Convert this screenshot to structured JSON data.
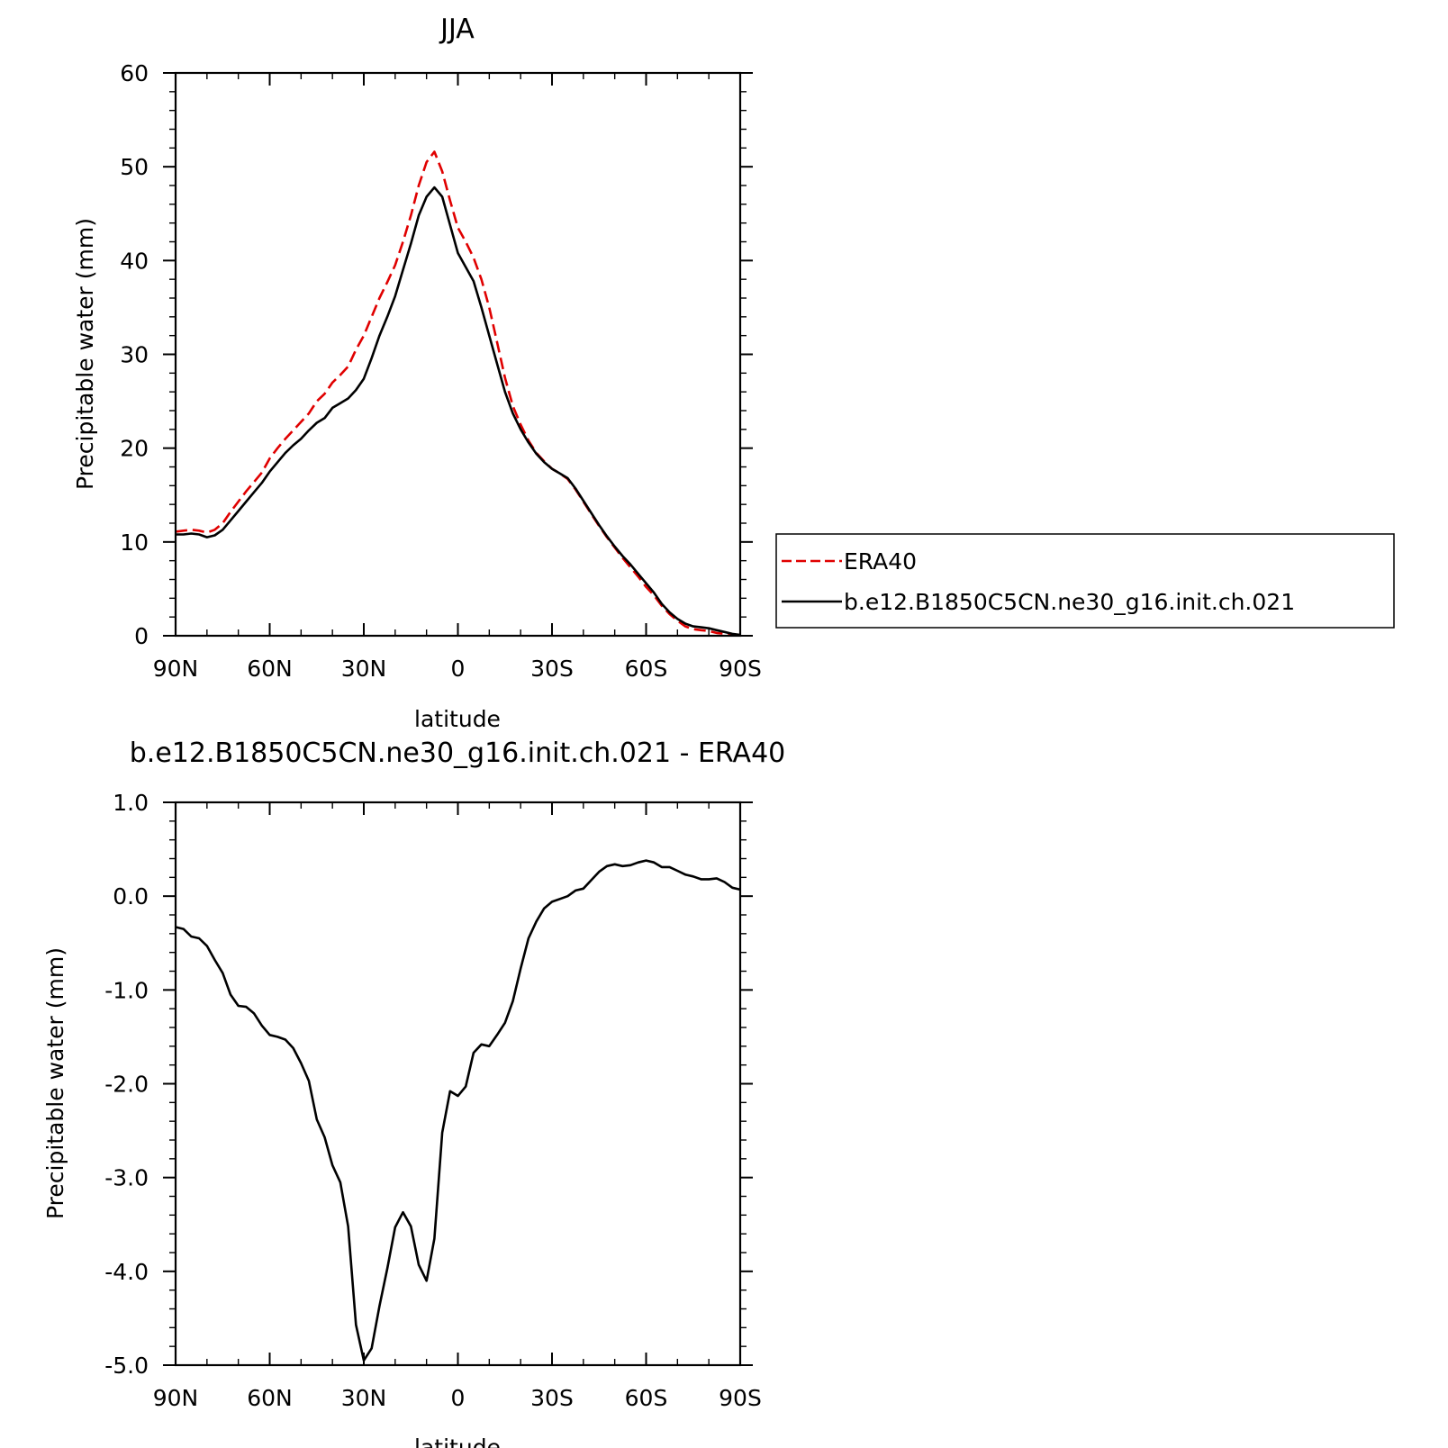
{
  "chart_data": [
    {
      "type": "line",
      "title": "JJA",
      "xlabel": "latitude",
      "ylabel": "Precipitable water (mm)",
      "xlim": [
        90,
        -90
      ],
      "ylim": [
        0,
        60
      ],
      "xticks": [
        90,
        60,
        30,
        0,
        -30,
        -60,
        -90
      ],
      "xtick_labels": [
        "90N",
        "60N",
        "30N",
        "0",
        "30S",
        "60S",
        "90S"
      ],
      "yticks": [
        0,
        10,
        20,
        30,
        40,
        50,
        60
      ],
      "ytick_labels": [
        "0",
        "10",
        "20",
        "30",
        "40",
        "50",
        "60"
      ],
      "grid": false,
      "legend": "right",
      "series": [
        {
          "name": "ERA40",
          "color": "#e00000",
          "dash": "dashed",
          "x": [
            90,
            87.5,
            85,
            82.5,
            80,
            77.5,
            75,
            72.5,
            70,
            67.5,
            65,
            62.5,
            60,
            57.5,
            55,
            52.5,
            50,
            47.5,
            45,
            42.5,
            40,
            37.5,
            35,
            32.5,
            30,
            27.5,
            25,
            22.5,
            20,
            17.5,
            15,
            12.5,
            10,
            7.5,
            5,
            2.5,
            0,
            -2.5,
            -5,
            -7.5,
            -10,
            -12.5,
            -15,
            -17.5,
            -20,
            -22.5,
            -25,
            -27.5,
            -30,
            -32.5,
            -35,
            -37.5,
            -40,
            -42.5,
            -45,
            -47.5,
            -50,
            -52.5,
            -55,
            -57.5,
            -60,
            -62.5,
            -65,
            -67.5,
            -70,
            -72.5,
            -75,
            -77.5,
            -80,
            -82.5,
            -85,
            -87.5,
            -90
          ],
          "y": [
            11.1,
            11.2,
            11.3,
            11.2,
            11.0,
            11.3,
            12.0,
            13.2,
            14.3,
            15.4,
            16.4,
            17.4,
            18.9,
            20.0,
            21.0,
            21.9,
            22.8,
            23.7,
            25.0,
            25.8,
            27.0,
            27.8,
            28.7,
            30.5,
            32.0,
            34.0,
            36.0,
            37.7,
            39.5,
            42.0,
            44.8,
            48.0,
            50.5,
            51.6,
            49.5,
            46.4,
            43.5,
            42.0,
            40.3,
            38.0,
            35.0,
            31.3,
            27.5,
            24.5,
            22.5,
            20.8,
            19.5,
            18.6,
            17.8,
            17.3,
            16.7,
            15.6,
            14.3,
            13.0,
            11.7,
            10.5,
            9.4,
            8.3,
            7.3,
            6.3,
            5.2,
            4.3,
            3.2,
            2.3,
            1.6,
            1.0,
            0.7,
            0.6,
            0.5,
            0.3,
            0.2,
            0.1,
            0.1
          ]
        },
        {
          "name": "b.e12.B1850C5CN.ne30_g16.init.ch.021",
          "color": "#000000",
          "dash": "solid",
          "x": [
            90,
            87.5,
            85,
            82.5,
            80,
            77.5,
            75,
            72.5,
            70,
            67.5,
            65,
            62.5,
            60,
            57.5,
            55,
            52.5,
            50,
            47.5,
            45,
            42.5,
            40,
            37.5,
            35,
            32.5,
            30,
            27.5,
            25,
            22.5,
            20,
            17.5,
            15,
            12.5,
            10,
            7.5,
            5,
            2.5,
            0,
            -2.5,
            -5,
            -7.5,
            -10,
            -12.5,
            -15,
            -17.5,
            -20,
            -22.5,
            -25,
            -27.5,
            -30,
            -32.5,
            -35,
            -37.5,
            -40,
            -42.5,
            -45,
            -47.5,
            -50,
            -52.5,
            -55,
            -57.5,
            -60,
            -62.5,
            -65,
            -67.5,
            -70,
            -72.5,
            -75,
            -77.5,
            -80,
            -82.5,
            -85,
            -87.5,
            -90
          ],
          "y": [
            10.8,
            10.8,
            10.9,
            10.8,
            10.5,
            10.7,
            11.3,
            12.3,
            13.3,
            14.3,
            15.3,
            16.3,
            17.5,
            18.5,
            19.5,
            20.3,
            21.0,
            21.9,
            22.7,
            23.2,
            24.3,
            24.8,
            25.3,
            26.2,
            27.4,
            29.6,
            32.0,
            34.0,
            36.2,
            39.0,
            41.8,
            44.8,
            46.8,
            47.8,
            46.8,
            43.8,
            40.8,
            39.3,
            37.8,
            35.0,
            32.0,
            29.0,
            26.0,
            23.7,
            22.0,
            20.6,
            19.4,
            18.5,
            17.8,
            17.3,
            16.8,
            15.7,
            14.4,
            13.1,
            11.8,
            10.6,
            9.5,
            8.5,
            7.6,
            6.6,
            5.6,
            4.6,
            3.4,
            2.5,
            1.8,
            1.3,
            1.0,
            0.9,
            0.8,
            0.6,
            0.4,
            0.2,
            0.1
          ]
        }
      ]
    },
    {
      "type": "line",
      "title": "b.e12.B1850C5CN.ne30_g16.init.ch.021 - ERA40",
      "xlabel": "latitude",
      "ylabel": "Precipitable water (mm)",
      "xlim": [
        90,
        -90
      ],
      "ylim": [
        -5.0,
        1.0
      ],
      "xticks": [
        90,
        60,
        30,
        0,
        -30,
        -60,
        -90
      ],
      "xtick_labels": [
        "90N",
        "60N",
        "30N",
        "0",
        "30S",
        "60S",
        "90S"
      ],
      "yticks": [
        1.0,
        0.0,
        -1.0,
        -2.0,
        -3.0,
        -4.0,
        -5.0
      ],
      "ytick_labels": [
        "1.0",
        "0.0",
        "-1.0",
        "-2.0",
        "-3.0",
        "-4.0",
        "-5.0"
      ],
      "grid": false,
      "series": [
        {
          "color": "#000000",
          "dash": "solid",
          "x": [
            90,
            87.5,
            85,
            82.5,
            80,
            77.5,
            75,
            72.5,
            70,
            67.5,
            65,
            62.5,
            60,
            57.5,
            55,
            52.5,
            50,
            47.5,
            45,
            42.5,
            40,
            37.5,
            35,
            32.5,
            30,
            27.5,
            25,
            22.5,
            20,
            17.5,
            15,
            12.5,
            10,
            7.5,
            5,
            2.5,
            0,
            -2.5,
            -5,
            -7.5,
            -10,
            -12.5,
            -15,
            -17.5,
            -20,
            -22.5,
            -25,
            -27.5,
            -30,
            -32.5,
            -35,
            -37.5,
            -40,
            -42.5,
            -45,
            -47.5,
            -50,
            -52.5,
            -55,
            -57.5,
            -60,
            -62.5,
            -65,
            -67.5,
            -70,
            -72.5,
            -75,
            -77.5,
            -80,
            -82.5,
            -85,
            -87.5,
            -90
          ],
          "y": [
            -0.33,
            -0.35,
            -0.43,
            -0.45,
            -0.53,
            -0.68,
            -0.82,
            -1.05,
            -1.17,
            -1.18,
            -1.25,
            -1.38,
            -1.48,
            -1.5,
            -1.53,
            -1.62,
            -1.78,
            -1.97,
            -2.38,
            -2.57,
            -2.87,
            -3.05,
            -3.52,
            -4.57,
            -4.95,
            -4.82,
            -4.37,
            -3.97,
            -3.53,
            -3.37,
            -3.52,
            -3.93,
            -4.1,
            -3.65,
            -2.52,
            -2.08,
            -2.13,
            -2.03,
            -1.67,
            -1.58,
            -1.6,
            -1.48,
            -1.35,
            -1.12,
            -0.77,
            -0.45,
            -0.27,
            -0.13,
            -0.06,
            -0.03,
            0.0,
            0.06,
            0.08,
            0.17,
            0.26,
            0.32,
            0.34,
            0.32,
            0.33,
            0.36,
            0.38,
            0.36,
            0.31,
            0.31,
            0.27,
            0.23,
            0.21,
            0.18,
            0.18,
            0.19,
            0.15,
            0.09,
            0.07
          ]
        }
      ]
    }
  ]
}
